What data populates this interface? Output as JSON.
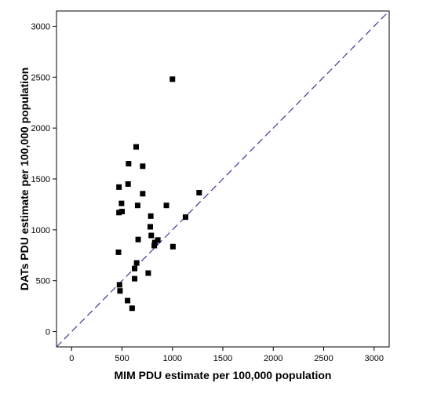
{
  "chart_data": {
    "type": "scatter",
    "title": "",
    "xlabel": "MIM  PDU estimate per 100,000 population",
    "ylabel": "DATs PDU estimate per 100,000 population",
    "xlim": [
      -150,
      3150
    ],
    "ylim": [
      -150,
      3150
    ],
    "xticks": [
      0,
      500,
      1000,
      1500,
      2000,
      2500,
      3000
    ],
    "yticks": [
      0,
      500,
      1000,
      1500,
      2000,
      2500,
      3000
    ],
    "grid": false,
    "legend": "none",
    "reference_line": {
      "slope": 1,
      "intercept": 0,
      "style": "dashed",
      "color": "#3b3b9a"
    },
    "marker": {
      "shape": "square",
      "color": "#000000"
    },
    "points": [
      {
        "x": 1000,
        "y": 2480
      },
      {
        "x": 640,
        "y": 1815
      },
      {
        "x": 565,
        "y": 1650
      },
      {
        "x": 705,
        "y": 1625
      },
      {
        "x": 470,
        "y": 1420
      },
      {
        "x": 560,
        "y": 1450
      },
      {
        "x": 705,
        "y": 1355
      },
      {
        "x": 1265,
        "y": 1365
      },
      {
        "x": 495,
        "y": 1260
      },
      {
        "x": 655,
        "y": 1240
      },
      {
        "x": 940,
        "y": 1240
      },
      {
        "x": 470,
        "y": 1170
      },
      {
        "x": 500,
        "y": 1180
      },
      {
        "x": 785,
        "y": 1135
      },
      {
        "x": 1130,
        "y": 1125
      },
      {
        "x": 780,
        "y": 1030
      },
      {
        "x": 790,
        "y": 945
      },
      {
        "x": 660,
        "y": 905
      },
      {
        "x": 855,
        "y": 900
      },
      {
        "x": 825,
        "y": 875
      },
      {
        "x": 820,
        "y": 845
      },
      {
        "x": 1005,
        "y": 835
      },
      {
        "x": 465,
        "y": 780
      },
      {
        "x": 645,
        "y": 675
      },
      {
        "x": 625,
        "y": 620
      },
      {
        "x": 760,
        "y": 575
      },
      {
        "x": 625,
        "y": 520
      },
      {
        "x": 475,
        "y": 460
      },
      {
        "x": 480,
        "y": 400
      },
      {
        "x": 555,
        "y": 305
      },
      {
        "x": 600,
        "y": 230
      }
    ]
  }
}
